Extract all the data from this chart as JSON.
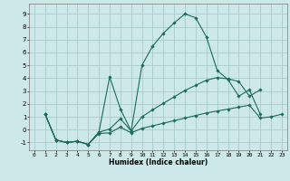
{
  "xlabel": "Humidex (Indice chaleur)",
  "bg_color": "#cde8e8",
  "grid_color": "#aacccc",
  "line_color": "#1a6b5a",
  "xlim": [
    -0.5,
    23.5
  ],
  "ylim": [
    -1.6,
    9.8
  ],
  "xticks": [
    0,
    1,
    2,
    3,
    4,
    5,
    6,
    7,
    8,
    9,
    10,
    11,
    12,
    13,
    14,
    15,
    16,
    17,
    18,
    19,
    20,
    21,
    22,
    23
  ],
  "yticks": [
    -1,
    0,
    1,
    2,
    3,
    4,
    5,
    6,
    7,
    8,
    9
  ],
  "line1_x": [
    1,
    2,
    3,
    4,
    5,
    6,
    7,
    8,
    9,
    10,
    11,
    12,
    13,
    14,
    15,
    16,
    17,
    18,
    19,
    20,
    21
  ],
  "line1_y": [
    1.2,
    -0.8,
    -1.0,
    -0.9,
    -1.15,
    -0.2,
    4.1,
    1.6,
    -0.1,
    5.0,
    6.5,
    7.5,
    8.3,
    9.0,
    8.7,
    7.2,
    4.6,
    3.9,
    2.6,
    3.1,
    1.2
  ],
  "line2_x": [
    1,
    2,
    3,
    4,
    5,
    6,
    7,
    8,
    9,
    10,
    11,
    12,
    13,
    14,
    15,
    16,
    17,
    18,
    19,
    20,
    21
  ],
  "line2_y": [
    1.2,
    -0.8,
    -1.0,
    -0.9,
    -1.15,
    -0.2,
    0.05,
    0.85,
    -0.1,
    1.0,
    1.55,
    2.05,
    2.55,
    3.05,
    3.45,
    3.85,
    4.05,
    3.95,
    3.75,
    2.6,
    3.1
  ],
  "line3_x": [
    1,
    2,
    3,
    4,
    5,
    6,
    7,
    8,
    9,
    10,
    11,
    12,
    13,
    14,
    15,
    16,
    17,
    18,
    19,
    20,
    21,
    22,
    23
  ],
  "line3_y": [
    1.2,
    -0.8,
    -1.0,
    -0.9,
    -1.15,
    -0.3,
    -0.25,
    0.2,
    -0.25,
    0.1,
    0.3,
    0.5,
    0.7,
    0.9,
    1.1,
    1.3,
    1.45,
    1.6,
    1.75,
    1.9,
    0.9,
    1.0,
    1.2
  ]
}
